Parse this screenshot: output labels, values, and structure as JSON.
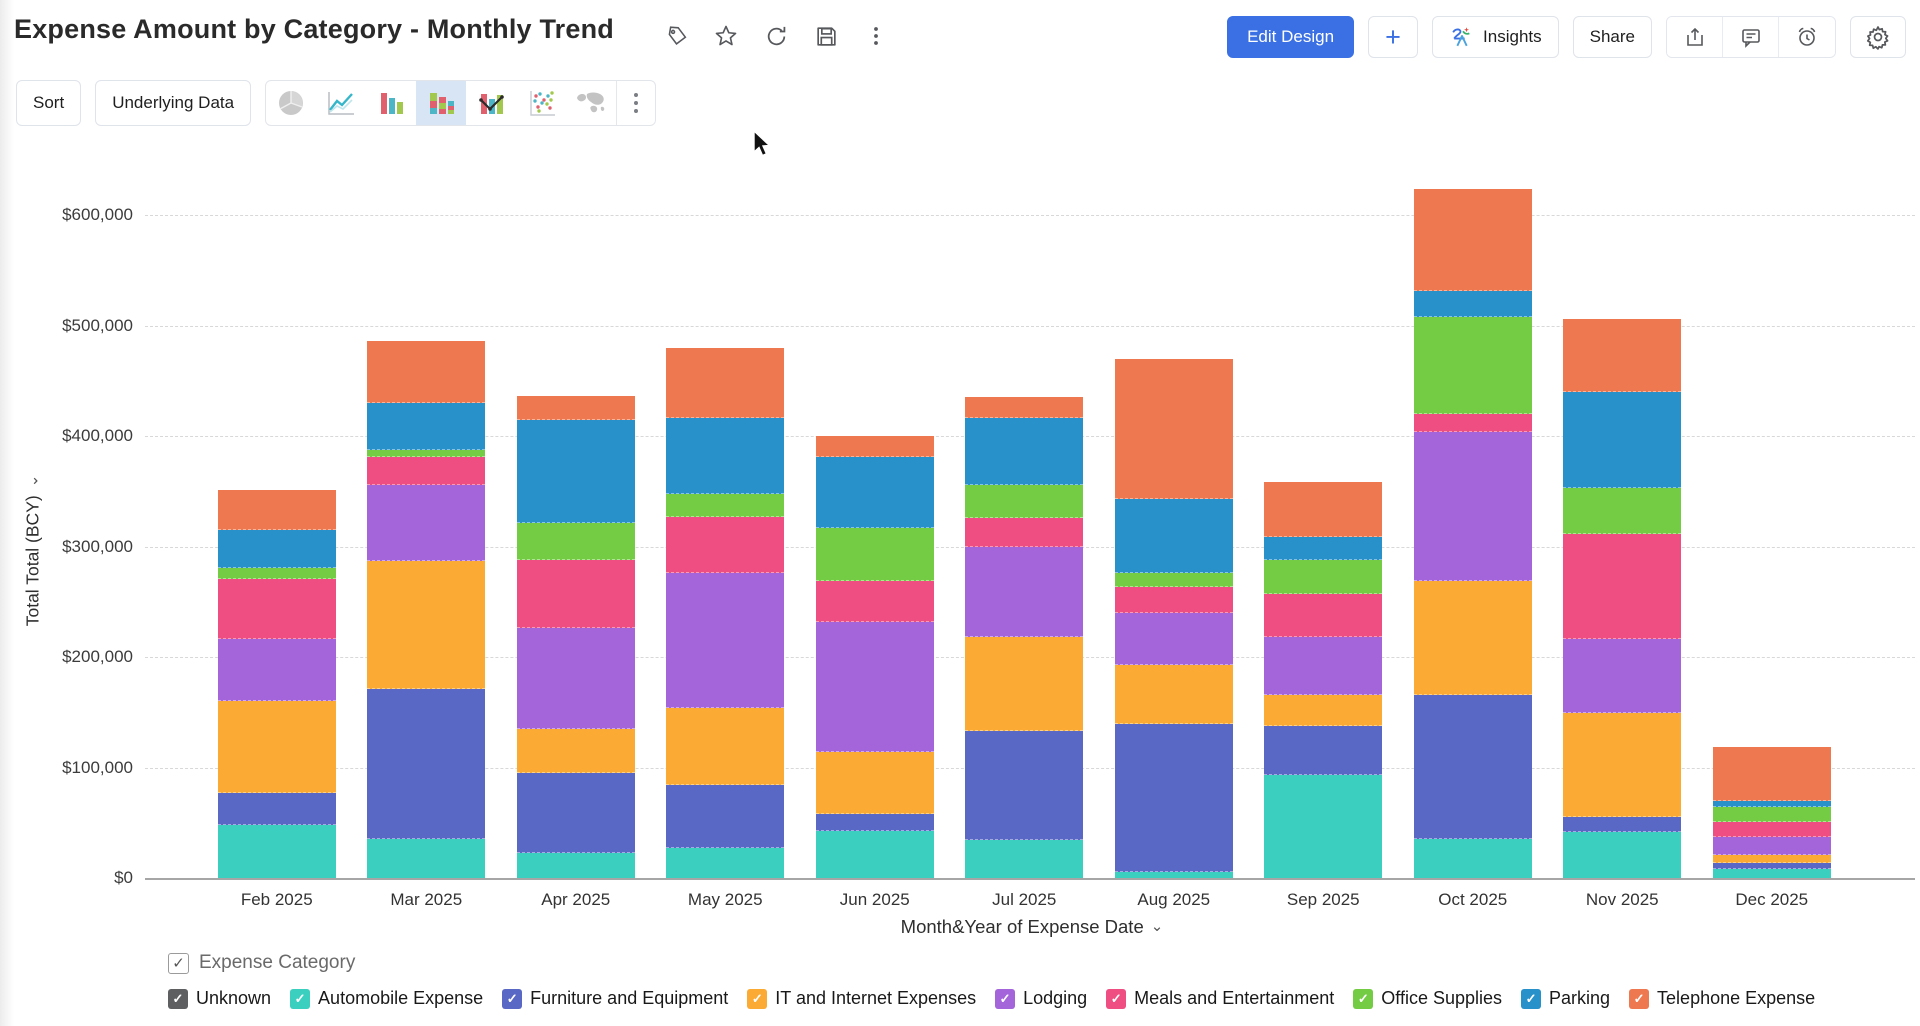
{
  "header": {
    "title": "Expense Amount by Category - Monthly Trend",
    "edit_design_label": "Edit Design",
    "plus_label": "+",
    "insights_label": "Insights",
    "share_label": "Share"
  },
  "toolbar": {
    "sort_label": "Sort",
    "underlying_data_label": "Underlying Data",
    "chart_types": [
      "pie-chart-icon",
      "line-chart-icon",
      "bar-chart-icon",
      "stacked-bar-chart-icon",
      "combo-chart-icon",
      "scatter-chart-icon",
      "map-chart-icon"
    ],
    "selected_chart_type": "stacked-bar-chart-icon"
  },
  "chart_data": {
    "type": "bar",
    "stacked": true,
    "title": "Expense Amount by Category - Monthly Trend",
    "xlabel": "Month&Year of Expense Date",
    "ylabel": "Total Total (BCY)",
    "ylim": [
      0,
      650000
    ],
    "grid": "horizontal-dashed",
    "legend_position": "bottom",
    "ytick_labels": [
      "$0",
      "$100,000",
      "$200,000",
      "$300,000",
      "$400,000",
      "$500,000",
      "$600,000"
    ],
    "ytick_values": [
      0,
      100000,
      200000,
      300000,
      400000,
      500000,
      600000
    ],
    "categories": [
      "Feb 2025",
      "Mar 2025",
      "Apr 2025",
      "May 2025",
      "Jun 2025",
      "Jul 2025",
      "Aug 2025",
      "Sep 2025",
      "Oct 2025",
      "Nov 2025",
      "Dec 2025"
    ],
    "series": [
      {
        "name": "Unknown",
        "color": "#5e5f61",
        "values": [
          0,
          0,
          0,
          0,
          0,
          0,
          0,
          0,
          0,
          0,
          0
        ]
      },
      {
        "name": "Automobile Expense",
        "color": "#3bcfc0",
        "values": [
          48000,
          35000,
          23000,
          27000,
          43000,
          34000,
          5000,
          93000,
          35000,
          42000,
          8000
        ]
      },
      {
        "name": "Furniture and Equipment",
        "color": "#5a68c5",
        "values": [
          29000,
          136000,
          72000,
          57000,
          15000,
          99000,
          134000,
          45000,
          131000,
          13000,
          6000
        ]
      },
      {
        "name": "IT and Internet Expenses",
        "color": "#fbab33",
        "values": [
          83000,
          116000,
          40000,
          70000,
          56000,
          85000,
          54000,
          28000,
          103000,
          94000,
          7000
        ]
      },
      {
        "name": "Lodging",
        "color": "#a365d9",
        "values": [
          56000,
          69000,
          91000,
          122000,
          118000,
          82000,
          47000,
          52000,
          135000,
          67000,
          16000
        ]
      },
      {
        "name": "Meals and Entertainment",
        "color": "#ef4e82",
        "values": [
          55000,
          25000,
          62000,
          51000,
          37000,
          26000,
          23000,
          39000,
          16000,
          95000,
          14000
        ]
      },
      {
        "name": "Office Supplies",
        "color": "#74cc44",
        "values": [
          10000,
          6000,
          33000,
          21000,
          48000,
          30000,
          13000,
          31000,
          88000,
          42000,
          13000
        ]
      },
      {
        "name": "Parking",
        "color": "#2891c9",
        "values": [
          34000,
          43000,
          94000,
          68000,
          64000,
          60000,
          67000,
          21000,
          23000,
          87000,
          6000
        ]
      },
      {
        "name": "Telephone Expense",
        "color": "#ee7950",
        "values": [
          36000,
          56000,
          21000,
          64000,
          19000,
          19000,
          127000,
          49000,
          93000,
          66000,
          49000
        ]
      }
    ],
    "totals": [
      351000,
      486000,
      436000,
      480000,
      400000,
      435000,
      470000,
      358000,
      624000,
      506000,
      119000
    ]
  },
  "legend": {
    "field_label": "Expense Category",
    "field_checked": true,
    "items": [
      {
        "label": "Unknown",
        "color": "#5e5f61",
        "checked": true
      },
      {
        "label": "Automobile Expense",
        "color": "#3bcfc0",
        "checked": true
      },
      {
        "label": "Furniture and Equipment",
        "color": "#5a68c5",
        "checked": true
      },
      {
        "label": "IT and Internet Expenses",
        "color": "#fbab33",
        "checked": true
      },
      {
        "label": "Lodging",
        "color": "#a365d9",
        "checked": true
      },
      {
        "label": "Meals and Entertainment",
        "color": "#ef4e82",
        "checked": true
      },
      {
        "label": "Office Supplies",
        "color": "#74cc44",
        "checked": true
      },
      {
        "label": "Parking",
        "color": "#2891c9",
        "checked": true
      },
      {
        "label": "Telephone Expense",
        "color": "#ee7950",
        "checked": true
      }
    ]
  }
}
